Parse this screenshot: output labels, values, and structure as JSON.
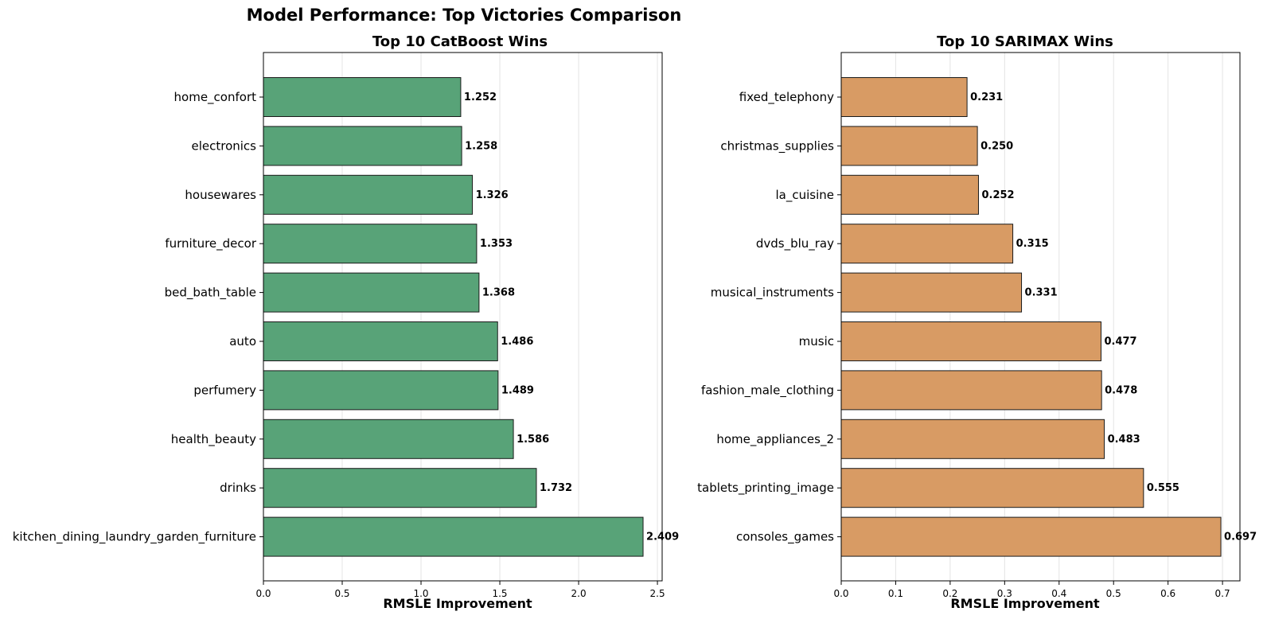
{
  "figure": {
    "suptitle": "Model Performance: Top Victories Comparison"
  },
  "chart_data": [
    {
      "type": "bar",
      "orientation": "horizontal",
      "title": "Top 10 CatBoost Wins",
      "xlabel": "RMSLE Improvement",
      "ylabel": "",
      "xlim": [
        0,
        2.53
      ],
      "xticks": [
        0.0,
        0.5,
        1.0,
        1.5,
        2.0,
        2.5
      ],
      "xtick_labels": [
        "0.0",
        "0.5",
        "1.0",
        "1.5",
        "2.0",
        "2.5"
      ],
      "grid": "vertical",
      "bar_color": "#58a378",
      "categories": [
        "home_confort",
        "electronics",
        "housewares",
        "furniture_decor",
        "bed_bath_table",
        "auto",
        "perfumery",
        "health_beauty",
        "drinks",
        "kitchen_dining_laundry_garden_furniture"
      ],
      "values": [
        1.252,
        1.258,
        1.326,
        1.353,
        1.368,
        1.486,
        1.489,
        1.586,
        1.732,
        2.409
      ],
      "value_labels": [
        "1.252",
        "1.258",
        "1.326",
        "1.353",
        "1.368",
        "1.486",
        "1.489",
        "1.586",
        "1.732",
        "2.409"
      ]
    },
    {
      "type": "bar",
      "orientation": "horizontal",
      "title": "Top 10 SARIMAX Wins",
      "xlabel": "RMSLE Improvement",
      "ylabel": "",
      "xlim": [
        0,
        0.732
      ],
      "xticks": [
        0.0,
        0.1,
        0.2,
        0.3,
        0.4,
        0.5,
        0.6,
        0.7
      ],
      "xtick_labels": [
        "0.0",
        "0.1",
        "0.2",
        "0.3",
        "0.4",
        "0.5",
        "0.6",
        "0.7"
      ],
      "grid": "vertical",
      "bar_color": "#d89b64",
      "categories": [
        "fixed_telephony",
        "christmas_supplies",
        "la_cuisine",
        "dvds_blu_ray",
        "musical_instruments",
        "music",
        "fashion_male_clothing",
        "home_appliances_2",
        "tablets_printing_image",
        "consoles_games"
      ],
      "values": [
        0.231,
        0.25,
        0.252,
        0.315,
        0.331,
        0.477,
        0.478,
        0.483,
        0.555,
        0.697
      ],
      "value_labels": [
        "0.231",
        "0.250",
        "0.252",
        "0.315",
        "0.331",
        "0.477",
        "0.478",
        "0.483",
        "0.555",
        "0.697"
      ]
    }
  ]
}
